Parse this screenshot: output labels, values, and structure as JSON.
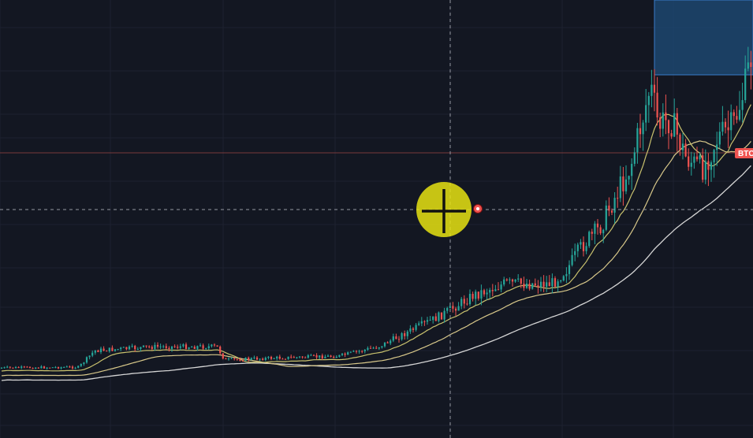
{
  "chart_data": {
    "type": "candlestick",
    "title": "",
    "symbol_tag": "BTC",
    "grid": true,
    "theme": "dark",
    "colors": {
      "background": "#131722",
      "grid": "#1e2230",
      "up": "#26a69a",
      "down": "#ef5350",
      "ma_fast": "#c9c26e",
      "ma_mid": "#d8c88a",
      "ma_slow": "#d6d6d6",
      "crosshair": "#9598a1",
      "price_line": "#7a3a3a",
      "selection_box": "#1f4e7a",
      "selection_border": "#3a7bc8",
      "cursor_highlight": "#e8e312",
      "tag_bg": "#ef5350"
    },
    "y_range": [
      0,
      556
    ],
    "candles": [],
    "ma_series_names": [
      "fast-ma",
      "mid-ma",
      "slow-ma"
    ],
    "crosshair": {
      "visible": true
    },
    "cursor": {
      "icon": "crosshair-cursor-icon",
      "highlighted": true
    }
  }
}
